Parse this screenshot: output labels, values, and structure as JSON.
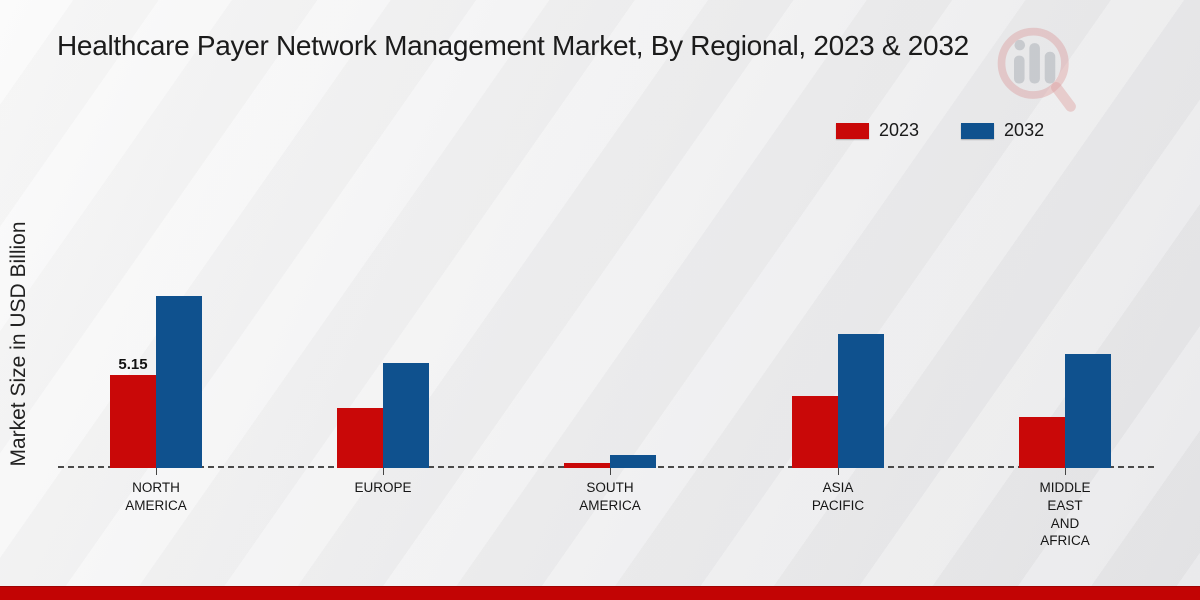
{
  "page": {
    "title": "Healthcare Payer Network Management Market, By Regional, 2023 & 2032"
  },
  "chart_data": {
    "type": "bar",
    "title": "Healthcare Payer Network Management Market, By Regional, 2023 & 2032",
    "xlabel": "",
    "ylabel": "Market Size in USD Billion",
    "ylim": [
      0,
      10
    ],
    "grid": false,
    "legend_position": "top-right",
    "baseline_style": "dashed",
    "categories": [
      "NORTH AMERICA",
      "EUROPE",
      "SOUTH AMERICA",
      "ASIA PACIFIC",
      "MIDDLE EAST AND AFRICA"
    ],
    "series": [
      {
        "name": "2023",
        "color": "#c90808",
        "values": [
          5.15,
          3.3,
          0.3,
          4.0,
          2.8
        ]
      },
      {
        "name": "2032",
        "color": "#0f518e",
        "values": [
          9.5,
          5.8,
          0.7,
          7.4,
          6.3
        ]
      }
    ],
    "annotations": [
      {
        "series": "2023",
        "category_index": 0,
        "text": "5.15"
      }
    ]
  },
  "colors": {
    "footer_bar": "#c20404",
    "baseline": "#4a4a4a",
    "watermark_red": "#cf5b5b",
    "watermark_gray": "#9aa0a8"
  },
  "watermark": {
    "name": "magnifier-bars-logo"
  }
}
